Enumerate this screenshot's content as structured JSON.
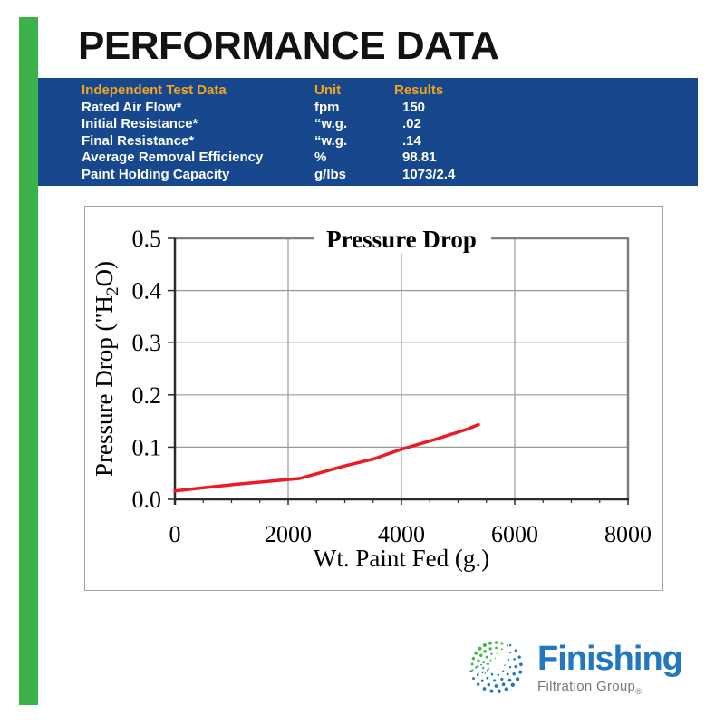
{
  "header": {
    "title": "PERFORMANCE DATA"
  },
  "table": {
    "columns": [
      "Independent Test Data",
      "Unit",
      "Results"
    ],
    "rows": [
      {
        "name": "Rated Air Flow*",
        "unit": "fpm",
        "result": "150"
      },
      {
        "name": "Initial Resistance*",
        "unit": "“w.g.",
        "result": ".02"
      },
      {
        "name": "Final Resistance*",
        "unit": "“w.g.",
        "result": ".14"
      },
      {
        "name": "Average Removal Efficiency",
        "unit": "%",
        "result": "98.81"
      },
      {
        "name": "Paint Holding Capacity",
        "unit": "g/lbs",
        "result": "1073/2.4"
      }
    ]
  },
  "chart_data": {
    "type": "line",
    "title": "Pressure Drop",
    "xlabel": "Wt. Paint Fed (g.)",
    "ylabel": "Pressure Drop (\"H2O)",
    "ylabel_parts": [
      "Pressure Drop (\"H",
      "2",
      "O)"
    ],
    "xlim": [
      0,
      8000
    ],
    "ylim": [
      0,
      0.5
    ],
    "x_ticks": [
      0,
      2000,
      4000,
      6000,
      8000
    ],
    "x_tick_labels": [
      "0",
      "2000",
      "4000",
      "6000",
      "8000"
    ],
    "y_ticks": [
      0,
      0.1,
      0.2,
      0.3,
      0.4,
      0.5
    ],
    "y_tick_labels": [
      "0.0",
      "0.1",
      "0.2",
      "0.3",
      "0.4",
      "0.5"
    ],
    "x_minor_step": 500,
    "grid": true,
    "legend": false,
    "line_color": "#EC1B23",
    "series": [
      {
        "name": "Pressure Drop",
        "x": [
          0,
          500,
          1000,
          1500,
          2000,
          2200,
          2500,
          3000,
          3500,
          4000,
          4600,
          5150,
          5360
        ],
        "y": [
          0.016,
          0.022,
          0.028,
          0.033,
          0.038,
          0.04,
          0.049,
          0.064,
          0.077,
          0.096,
          0.115,
          0.134,
          0.143
        ]
      }
    ]
  },
  "logo": {
    "brand": "Finishing",
    "subtitle": "Filtration Group",
    "registered": "®",
    "brand_color": "#2278BE",
    "subtitle_color": "#76777A",
    "swirl_green": "#45B649",
    "swirl_blue": "#2278BE"
  },
  "colors": {
    "accent_green": "#3CB24A",
    "band_navy": "#17478C",
    "header_orange": "#F2A41E",
    "line_red": "#EC1B23",
    "title_black": "#121212"
  }
}
